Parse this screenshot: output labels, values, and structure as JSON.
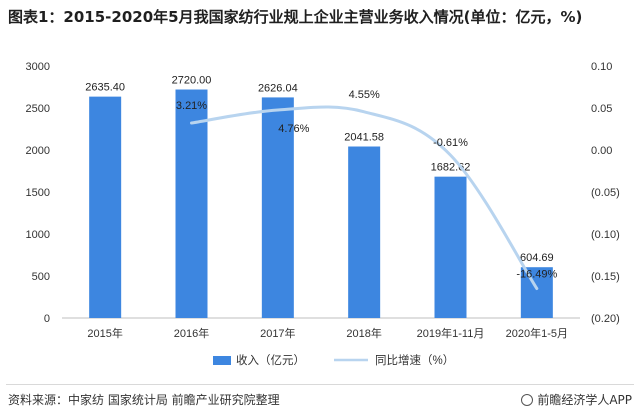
{
  "title": "图表1：2015-2020年5月我国家纺行业规上企业主营业务收入情况(单位：亿元，%)",
  "chart_data": {
    "type": "bar",
    "categories": [
      "2015年",
      "2016年",
      "2017年",
      "2018年",
      "2019年1-11月",
      "2020年1-5月"
    ],
    "series": [
      {
        "name": "收入（亿元）",
        "type": "bar",
        "axis": "left",
        "color": "#3d86e0",
        "values": [
          2635.4,
          2720.0,
          2626.04,
          2041.58,
          1682.62,
          604.69
        ],
        "labels": [
          "2635.40",
          "2720.00",
          "2626.04",
          "2041.58",
          "1682.62",
          "604.69"
        ]
      },
      {
        "name": "同比增速（%）",
        "type": "line",
        "axis": "right",
        "color": "#b8d4ef",
        "values": [
          null,
          3.21,
          4.76,
          4.55,
          -0.61,
          -16.49
        ],
        "labels": [
          "",
          "3.21%",
          "4.76%",
          "4.55%",
          "-0.61%",
          "-16.49%"
        ]
      }
    ],
    "y_left": {
      "min": 0,
      "max": 3000,
      "ticks": [
        0,
        500,
        1000,
        1500,
        2000,
        2500,
        3000
      ],
      "tick_labels": [
        "0",
        "500",
        "1000",
        "1500",
        "2000",
        "2500",
        "3000"
      ]
    },
    "y_right": {
      "min": -0.2,
      "max": 0.1,
      "ticks": [
        0.1,
        0.05,
        0.0,
        -0.05,
        -0.1,
        -0.15,
        -0.2
      ],
      "tick_labels": [
        "0.10",
        "0.05",
        "0.00",
        "(0.05)",
        "(0.10)",
        "(0.15)",
        "(0.20)"
      ]
    },
    "xlabel": "",
    "ylabel": "",
    "grid": false,
    "legend_position": "bottom"
  },
  "source": "资料来源：中家纺 国家统计局 前瞻产业研究院整理",
  "brand": "前瞻经济学人APP",
  "brand_icon": "brand-logo-icon"
}
